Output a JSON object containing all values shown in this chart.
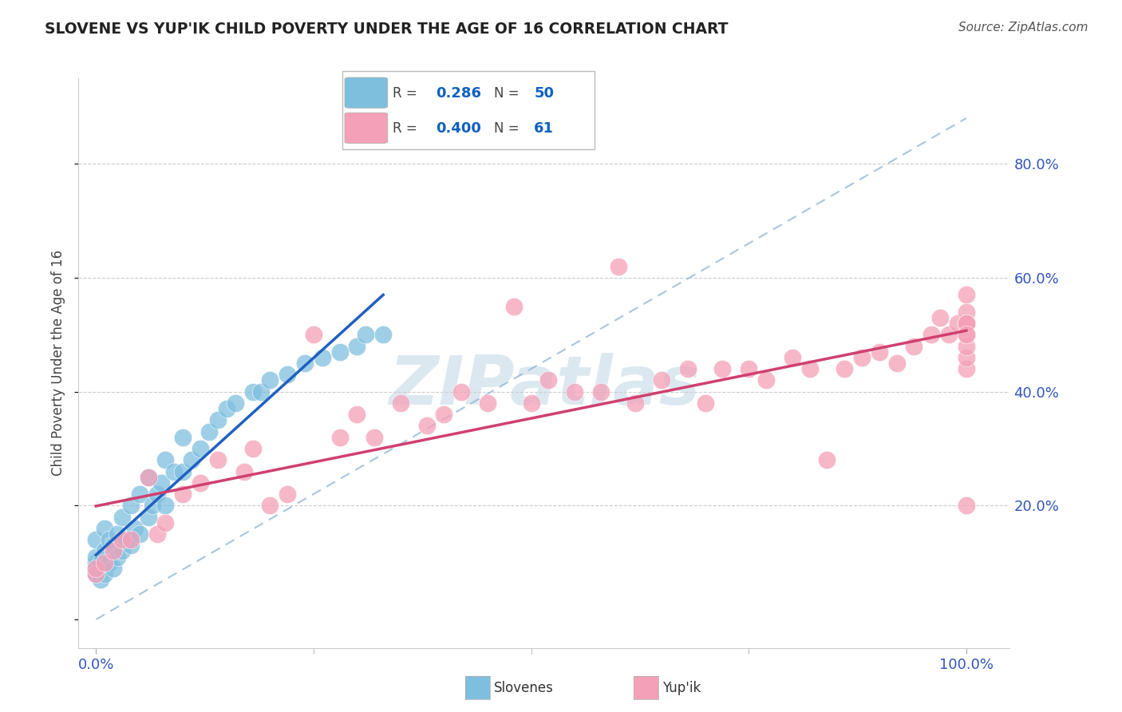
{
  "title": "SLOVENE VS YUP'IK CHILD POVERTY UNDER THE AGE OF 16 CORRELATION CHART",
  "source": "Source: ZipAtlas.com",
  "ylabel": "Child Poverty Under the Age of 16",
  "xlim": [
    -0.02,
    1.05
  ],
  "ylim": [
    -0.05,
    0.95
  ],
  "xtick_labels": [
    "0.0%",
    "100.0%"
  ],
  "xtick_vals": [
    0.0,
    1.0
  ],
  "ytick_labels": [
    "20.0%",
    "40.0%",
    "60.0%",
    "80.0%"
  ],
  "ytick_vals": [
    0.2,
    0.4,
    0.6,
    0.8
  ],
  "grid_lines": [
    0.2,
    0.4,
    0.6,
    0.8
  ],
  "slovene_color": "#7fbfde",
  "yupik_color": "#f4a0b8",
  "slovene_line_color": "#2060c0",
  "yupik_line_color": "#d04070",
  "diagonal_color": "#90b8d8",
  "slovene_R": 0.286,
  "slovene_N": 50,
  "yupik_R": 0.4,
  "yupik_N": 61,
  "legend_R_color": "#1060c0",
  "legend_N_color": "#1060c0",
  "title_color": "#222222",
  "source_color": "#555555",
  "tick_color": "#3355bb",
  "watermark_color": "#dce8f0",
  "slovene_x": [
    0.0,
    0.0,
    0.0,
    0.0,
    0.0,
    0.005,
    0.005,
    0.01,
    0.01,
    0.01,
    0.015,
    0.015,
    0.02,
    0.02,
    0.025,
    0.025,
    0.03,
    0.03,
    0.035,
    0.04,
    0.04,
    0.045,
    0.05,
    0.05,
    0.06,
    0.06,
    0.065,
    0.07,
    0.075,
    0.08,
    0.08,
    0.09,
    0.1,
    0.1,
    0.11,
    0.12,
    0.13,
    0.14,
    0.15,
    0.16,
    0.18,
    0.19,
    0.2,
    0.22,
    0.24,
    0.26,
    0.28,
    0.3,
    0.31,
    0.33
  ],
  "slovene_y": [
    0.08,
    0.09,
    0.1,
    0.11,
    0.14,
    0.07,
    0.1,
    0.08,
    0.12,
    0.16,
    0.1,
    0.14,
    0.09,
    0.13,
    0.11,
    0.15,
    0.12,
    0.18,
    0.14,
    0.13,
    0.2,
    0.16,
    0.15,
    0.22,
    0.18,
    0.25,
    0.2,
    0.22,
    0.24,
    0.2,
    0.28,
    0.26,
    0.26,
    0.32,
    0.28,
    0.3,
    0.33,
    0.35,
    0.37,
    0.38,
    0.4,
    0.4,
    0.42,
    0.43,
    0.45,
    0.46,
    0.47,
    0.48,
    0.5,
    0.5
  ],
  "yupik_x": [
    0.0,
    0.0,
    0.01,
    0.02,
    0.03,
    0.04,
    0.06,
    0.07,
    0.08,
    0.1,
    0.12,
    0.14,
    0.17,
    0.18,
    0.2,
    0.22,
    0.25,
    0.28,
    0.3,
    0.32,
    0.35,
    0.38,
    0.4,
    0.42,
    0.45,
    0.48,
    0.5,
    0.52,
    0.55,
    0.58,
    0.6,
    0.62,
    0.65,
    0.68,
    0.7,
    0.72,
    0.75,
    0.77,
    0.8,
    0.82,
    0.84,
    0.86,
    0.88,
    0.9,
    0.92,
    0.94,
    0.96,
    0.97,
    0.98,
    0.99,
    1.0,
    1.0,
    1.0,
    1.0,
    1.0,
    1.0,
    1.0,
    1.0,
    1.0,
    1.0,
    1.0
  ],
  "yupik_y": [
    0.08,
    0.09,
    0.1,
    0.12,
    0.14,
    0.14,
    0.25,
    0.15,
    0.17,
    0.22,
    0.24,
    0.28,
    0.26,
    0.3,
    0.2,
    0.22,
    0.5,
    0.32,
    0.36,
    0.32,
    0.38,
    0.34,
    0.36,
    0.4,
    0.38,
    0.55,
    0.38,
    0.42,
    0.4,
    0.4,
    0.62,
    0.38,
    0.42,
    0.44,
    0.38,
    0.44,
    0.44,
    0.42,
    0.46,
    0.44,
    0.28,
    0.44,
    0.46,
    0.47,
    0.45,
    0.48,
    0.5,
    0.53,
    0.5,
    0.52,
    0.44,
    0.46,
    0.48,
    0.5,
    0.52,
    0.54,
    0.2,
    0.52,
    0.57,
    0.52,
    0.5
  ]
}
